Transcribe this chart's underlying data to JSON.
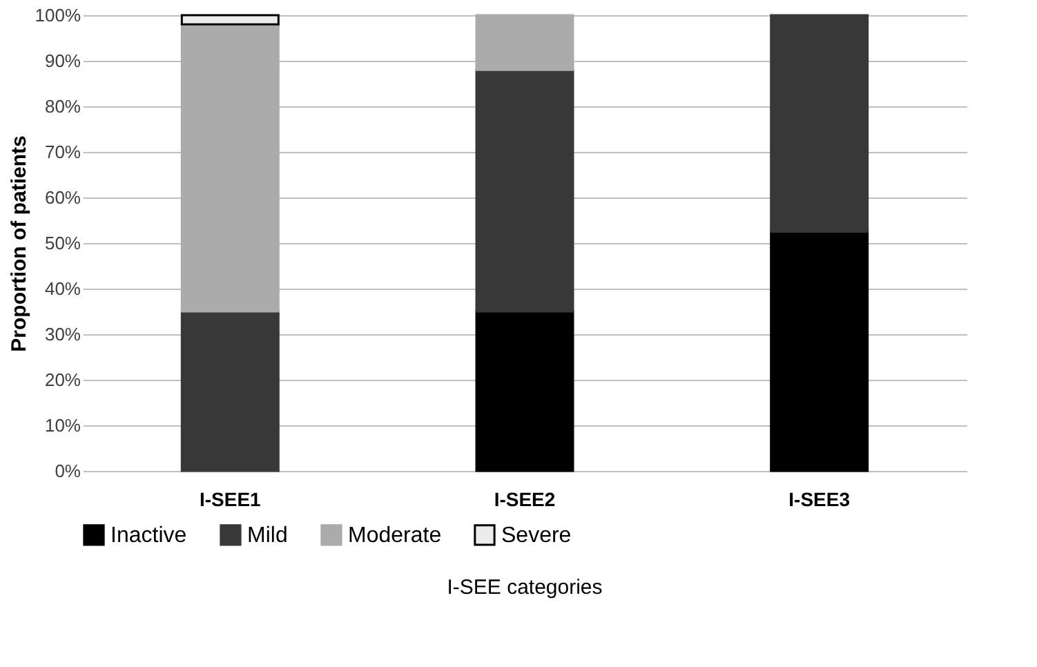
{
  "chart_data": {
    "type": "bar",
    "stacked": true,
    "xlabel": "I-SEE categories",
    "ylabel": "Proportion of patients",
    "categories": [
      "I-SEE1",
      "I-SEE2",
      "I-SEE3"
    ],
    "series": [
      {
        "name": "Inactive",
        "color": "#000000",
        "values": [
          0,
          35,
          52.5
        ]
      },
      {
        "name": "Mild",
        "color": "#383838",
        "values": [
          35,
          53,
          47.5
        ]
      },
      {
        "name": "Moderate",
        "color": "#ababab",
        "values": [
          63,
          12,
          0
        ]
      },
      {
        "name": "Severe",
        "color": "#ececec",
        "values": [
          2,
          0,
          0
        ]
      }
    ],
    "ylim": [
      0,
      100
    ],
    "yticks": [
      {
        "value": 0,
        "label": "0%"
      },
      {
        "value": 10,
        "label": "10%"
      },
      {
        "value": 20,
        "label": "20%"
      },
      {
        "value": 30,
        "label": "30%"
      },
      {
        "value": 40,
        "label": "40%"
      },
      {
        "value": 50,
        "label": "50%"
      },
      {
        "value": 60,
        "label": "60%"
      },
      {
        "value": 70,
        "label": "70%"
      },
      {
        "value": 80,
        "label": "80%"
      },
      {
        "value": 90,
        "label": "90%"
      },
      {
        "value": 100,
        "label": "100%"
      }
    ],
    "grid": "y",
    "legend": "bottom"
  }
}
